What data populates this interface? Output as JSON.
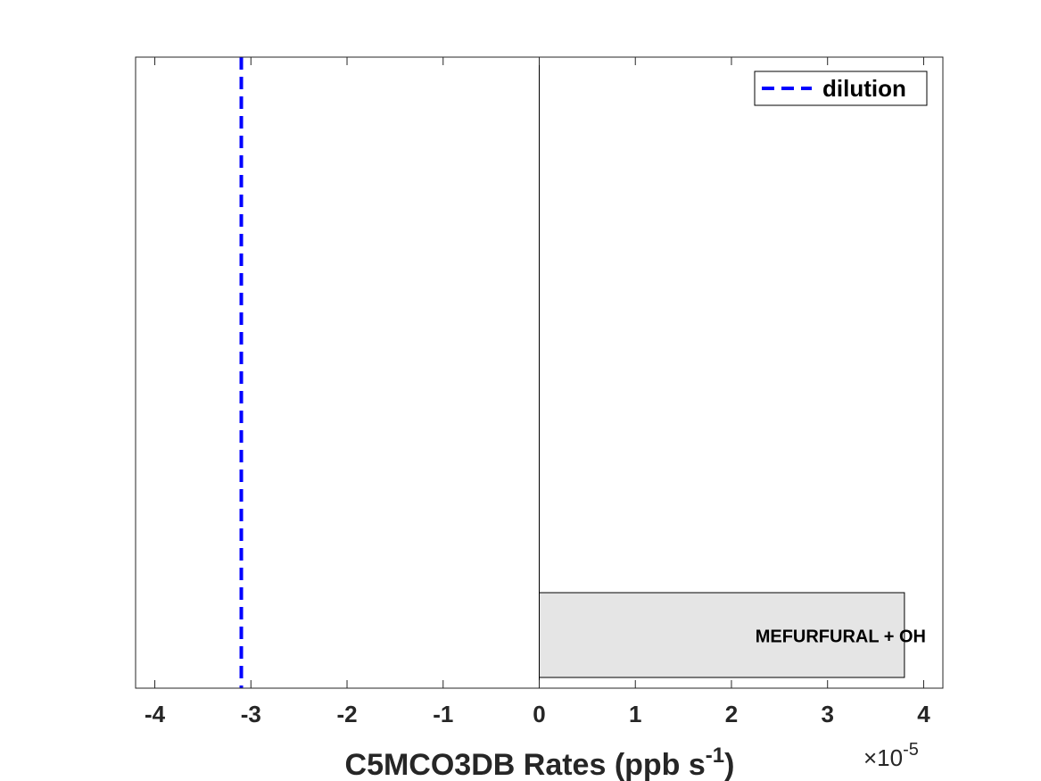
{
  "chart_data": {
    "type": "bar",
    "orientation": "horizontal",
    "xlabel_main": "C5MCO3DB Rates (ppb s",
    "xlabel_sup": "-1",
    "xlabel_close": ")",
    "exponent_prefix": "×10",
    "exponent_power": "-5",
    "xlim": [
      -4.2,
      4.2
    ],
    "xticks": [
      -4,
      -3,
      -2,
      -1,
      0,
      1,
      2,
      3,
      4
    ],
    "xtick_labels": [
      "-4",
      "-3",
      "-2",
      "-1",
      "0",
      "1",
      "2",
      "3",
      "4"
    ],
    "bars": [
      {
        "label": "MEFURFURAL + OH",
        "value": 3.8,
        "color": "#e5e5e5"
      }
    ],
    "reference_lines": [
      {
        "name": "dilution",
        "value": -3.1,
        "color": "#0000ff",
        "style": "dashed"
      }
    ],
    "legend": {
      "position": "top-right",
      "entries": [
        "dilution"
      ]
    },
    "grid": false
  }
}
